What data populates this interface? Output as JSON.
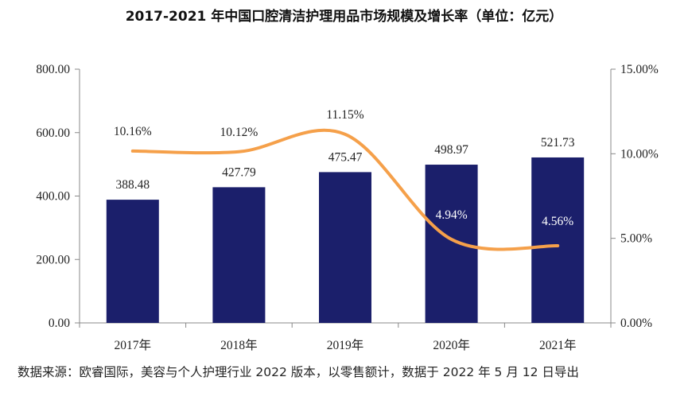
{
  "title": "2017-2021 年中国口腔清洁护理用品市场规模及增长率（单位：亿元）",
  "source_note": "数据来源：欧睿国际，美容与个人护理行业 2022 版本，以零售额计，数据于 2022 年 5 月 12 日导出",
  "chart_data": {
    "type": "bar",
    "categories": [
      "2017年",
      "2018年",
      "2019年",
      "2020年",
      "2021年"
    ],
    "series": [
      {
        "type": "bar",
        "axis": "left",
        "color": "#1b1f6b",
        "values": [
          388.48,
          427.79,
          475.47,
          498.97,
          521.73
        ],
        "labels": [
          "388.48",
          "427.79",
          "475.47",
          "498.97",
          "521.73"
        ]
      },
      {
        "type": "line",
        "axis": "right",
        "color": "#f5a04a",
        "smooth": true,
        "values": [
          10.16,
          10.12,
          11.15,
          4.94,
          4.56
        ],
        "labels": [
          "10.16%",
          "10.12%",
          "11.15%",
          "4.94%",
          "4.56%"
        ]
      }
    ],
    "y_left": {
      "range": [
        0,
        800
      ],
      "ticks": [
        "0.00",
        "200.00",
        "400.00",
        "600.00",
        "800.00"
      ]
    },
    "y_right": {
      "range": [
        0,
        15
      ],
      "ticks": [
        "0.00%",
        "5.00%",
        "10.00%",
        "15.00%"
      ]
    },
    "grid": false,
    "legend": "none"
  }
}
